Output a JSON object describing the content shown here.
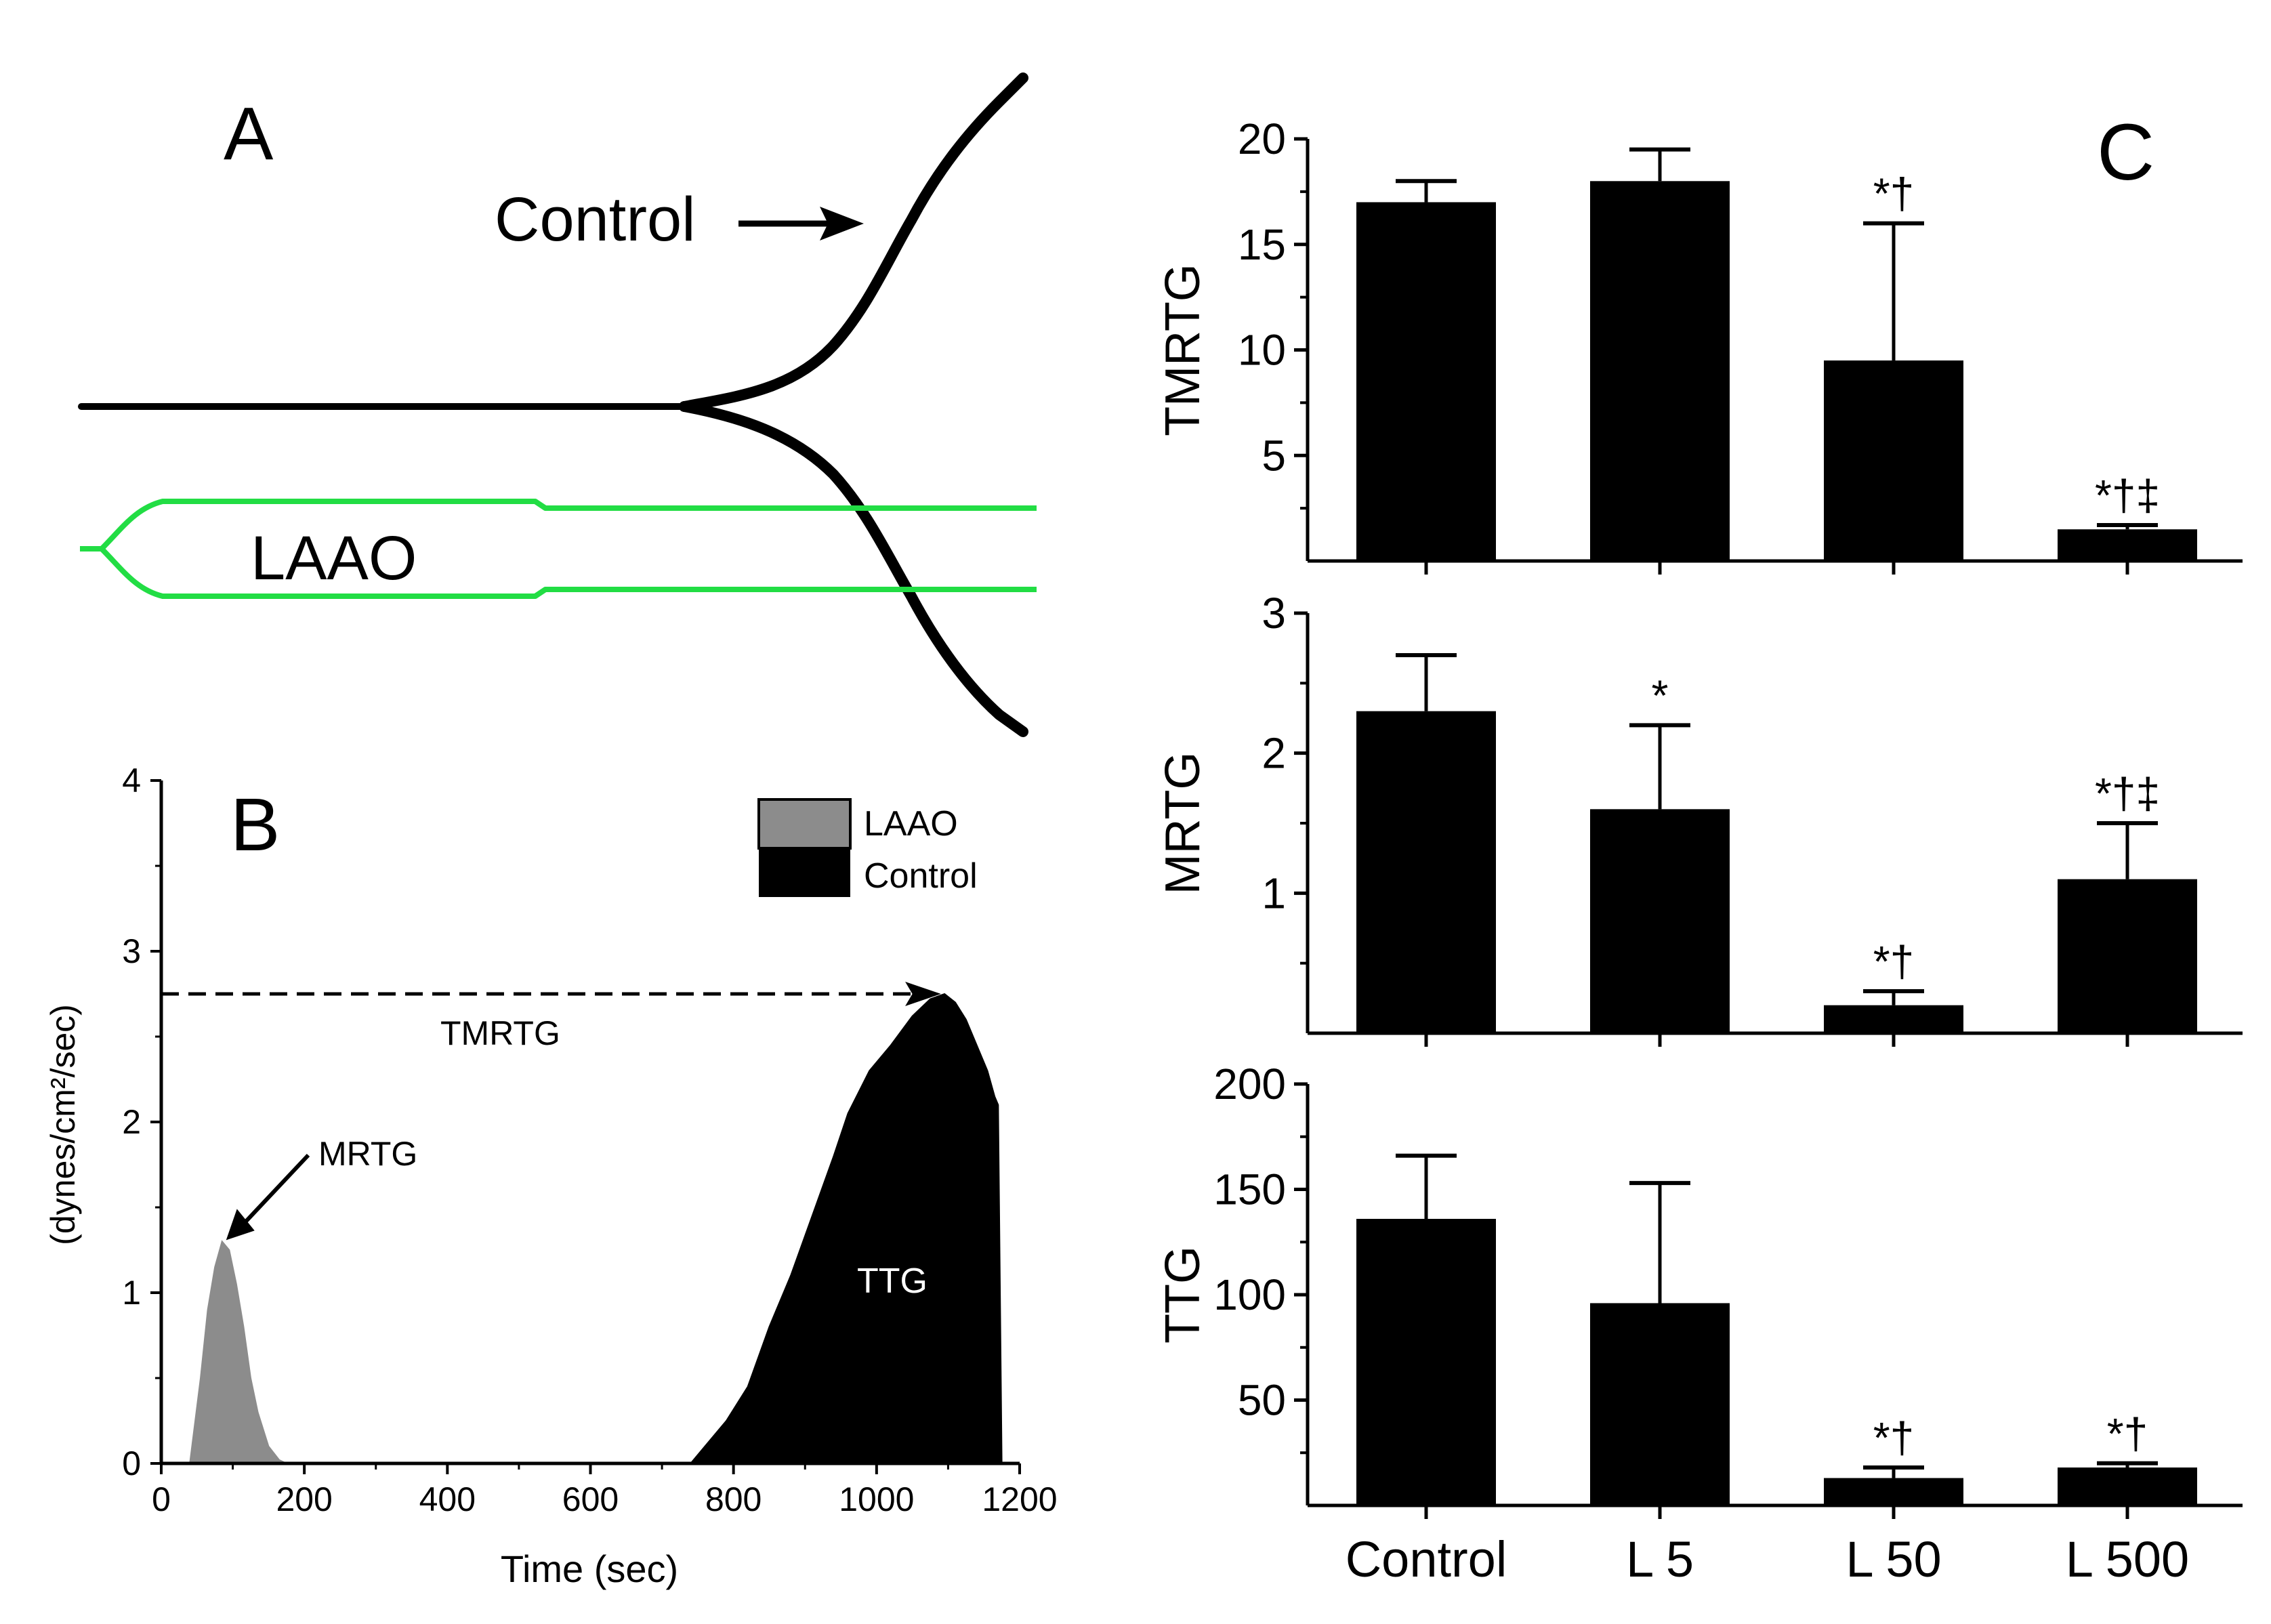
{
  "panel_a": {
    "label": "A",
    "control_label": "Control",
    "laao_label": "LAAO",
    "control_color": "#000000",
    "laao_color": "#22dd44"
  },
  "panel_b": {
    "label": "B",
    "ylabel": "(dynes/cm²/sec)",
    "xlabel": "Time (sec)",
    "tmrtg_label": "TMRTG",
    "mrtg_label": "MRTG",
    "ttg_label": "TTG",
    "legend": [
      {
        "name": "LAAO",
        "color": "#8c8c8c"
      },
      {
        "name": "Control",
        "color": "#000000"
      }
    ]
  },
  "panel_c": {
    "label": "C"
  },
  "chart_data": [
    {
      "type": "area",
      "xlim": [
        0,
        1200
      ],
      "ylim": [
        0,
        4
      ],
      "xticks": [
        "0",
        "200",
        "400",
        "600",
        "800",
        "1000",
        "1200"
      ],
      "yticks": [
        "0",
        "1",
        "2",
        "3",
        "4"
      ],
      "xlabel": "Time (sec)",
      "ylabel": "(dynes/cm²/sec)",
      "series": [
        {
          "name": "LAAO",
          "color": "#8c8c8c",
          "x": [
            40,
            55,
            65,
            75,
            85,
            95,
            105,
            115,
            125,
            135,
            150,
            165,
            175
          ],
          "y": [
            0,
            0.5,
            0.9,
            1.15,
            1.3,
            1.25,
            1.05,
            0.8,
            0.5,
            0.3,
            0.1,
            0.02,
            0
          ]
        },
        {
          "name": "Control",
          "color": "#000000",
          "x": [
            740,
            760,
            790,
            820,
            850,
            880,
            910,
            940,
            960,
            990,
            1020,
            1050,
            1075,
            1095,
            1110,
            1125,
            1140,
            1155,
            1165,
            1170,
            1175
          ],
          "y": [
            0,
            0.1,
            0.25,
            0.45,
            0.8,
            1.1,
            1.45,
            1.8,
            2.05,
            2.3,
            2.45,
            2.62,
            2.72,
            2.75,
            2.7,
            2.6,
            2.45,
            2.3,
            2.15,
            2.1,
            0
          ]
        }
      ],
      "annotations": [
        {
          "text": "TMRTG",
          "value": 2.75
        },
        {
          "text": "MRTG",
          "x": 85,
          "y": 1.3
        },
        {
          "text": "TTG"
        }
      ]
    },
    {
      "type": "bar",
      "categories": [
        "Control",
        "L 5",
        "L 50",
        "L 500"
      ],
      "ylabel": "TMRTG",
      "ylim": [
        0,
        20
      ],
      "yticks": [
        "5",
        "10",
        "15",
        "20"
      ],
      "values": [
        17,
        18,
        9.5,
        1.5
      ],
      "errors": [
        1,
        1.5,
        6.5,
        0.2
      ],
      "marks": [
        "",
        "",
        "*†",
        "*†‡"
      ]
    },
    {
      "type": "bar",
      "categories": [
        "Control",
        "L 5",
        "L 50",
        "L 500"
      ],
      "ylabel": "MRTG",
      "ylim": [
        0,
        3
      ],
      "yticks": [
        "1",
        "2",
        "3"
      ],
      "values": [
        2.3,
        1.6,
        0.2,
        1.1
      ],
      "errors": [
        0.4,
        0.6,
        0.1,
        0.4
      ],
      "marks": [
        "",
        "*",
        "*†",
        "*†‡"
      ]
    },
    {
      "type": "bar",
      "categories": [
        "Control",
        "L 5",
        "L 50",
        "L 500"
      ],
      "ylabel": "TTG",
      "ylim": [
        0,
        200
      ],
      "yticks": [
        "50",
        "100",
        "150",
        "200"
      ],
      "values": [
        136,
        96,
        13,
        18
      ],
      "errors": [
        30,
        57,
        5,
        2
      ],
      "marks": [
        "",
        "",
        "*†",
        "*†"
      ]
    }
  ]
}
